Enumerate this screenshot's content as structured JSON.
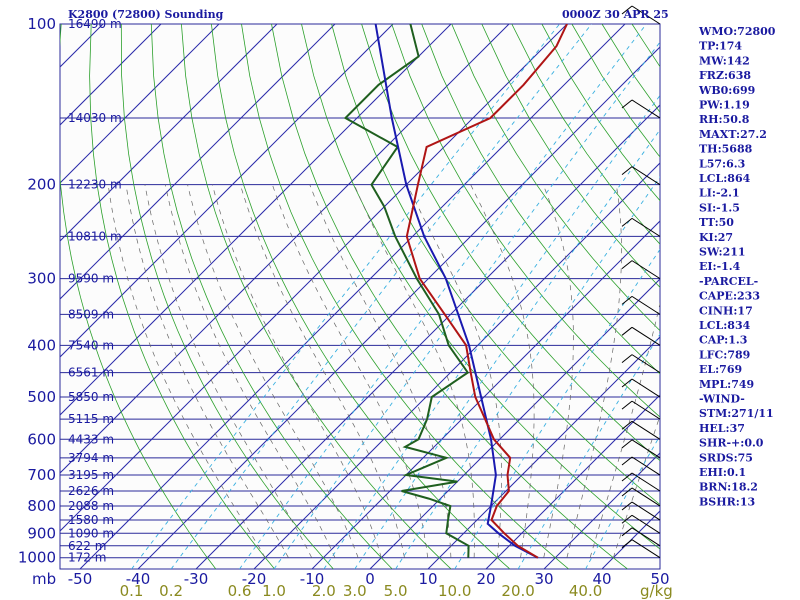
{
  "header": {
    "left": "K2800 (72800) Sounding",
    "right": "0000Z 30 APR 25"
  },
  "units": {
    "pressure": "mb",
    "mixing_ratio": "g/kg"
  },
  "chart_data": {
    "type": "skew-t",
    "pressure_levels": [
      100,
      200,
      300,
      400,
      500,
      600,
      700,
      800,
      900,
      1000
    ],
    "pressure_tick_labels": [
      "100",
      "200",
      "300",
      "400",
      "500",
      "600",
      "700",
      "800",
      "900",
      "1000"
    ],
    "height_labels": [
      {
        "p": 100,
        "label": "16490 m"
      },
      {
        "p": 150,
        "label": "14030 m"
      },
      {
        "p": 200,
        "label": "12230 m"
      },
      {
        "p": 250,
        "label": "10810 m"
      },
      {
        "p": 300,
        "label": "9590 m"
      },
      {
        "p": 350,
        "label": "8509 m"
      },
      {
        "p": 400,
        "label": "7540 m"
      },
      {
        "p": 450,
        "label": "6561 m"
      },
      {
        "p": 500,
        "label": "5850 m"
      },
      {
        "p": 550,
        "label": "5115 m"
      },
      {
        "p": 600,
        "label": "4433 m"
      },
      {
        "p": 650,
        "label": "3794 m"
      },
      {
        "p": 700,
        "label": "3195 m"
      },
      {
        "p": 750,
        "label": "2626 m"
      },
      {
        "p": 800,
        "label": "2088 m"
      },
      {
        "p": 850,
        "label": "1580 m"
      },
      {
        "p": 900,
        "label": "1090 m"
      },
      {
        "p": 950,
        "label": "622 m"
      },
      {
        "p": 1000,
        "label": "172 m"
      }
    ],
    "temperature_ticks": [
      -50,
      -40,
      -30,
      -20,
      -10,
      0,
      10,
      20,
      30,
      40,
      50
    ],
    "temperature_tick_labels": [
      "-50",
      "-40",
      "-30",
      "-20",
      "-10",
      "0",
      "10",
      "20",
      "30",
      "40",
      "50"
    ],
    "mixing_ratio_ticks": [
      0.1,
      0.2,
      0.6,
      1.0,
      2.0,
      3.0,
      5.0,
      10.0,
      20.0,
      40.0
    ],
    "mixing_ratio_tick_labels": [
      "0.1",
      "0.2",
      "0.6",
      "1.0",
      "2.0",
      "3.0",
      "5.0",
      "10.0",
      "20.0",
      "40.0"
    ],
    "temperature_profile": [
      {
        "p": 1000,
        "t": 27.0
      },
      {
        "p": 950,
        "t": 21.5
      },
      {
        "p": 900,
        "t": 17.0
      },
      {
        "p": 850,
        "t": 12.5
      },
      {
        "p": 800,
        "t": 11.0
      },
      {
        "p": 750,
        "t": 10.5
      },
      {
        "p": 700,
        "t": 7.5
      },
      {
        "p": 650,
        "t": 5.0
      },
      {
        "p": 600,
        "t": -1.0
      },
      {
        "p": 550,
        "t": -6.0
      },
      {
        "p": 500,
        "t": -11.5
      },
      {
        "p": 450,
        "t": -16.5
      },
      {
        "p": 400,
        "t": -22.0
      },
      {
        "p": 350,
        "t": -31.0
      },
      {
        "p": 300,
        "t": -41.5
      },
      {
        "p": 250,
        "t": -51.0
      },
      {
        "p": 200,
        "t": -58.0
      },
      {
        "p": 170,
        "t": -63.0
      },
      {
        "p": 150,
        "t": -57.0
      },
      {
        "p": 130,
        "t": -57.0
      },
      {
        "p": 110,
        "t": -58.0
      },
      {
        "p": 100,
        "t": -60.0
      }
    ],
    "dewpoint_profile": [
      {
        "p": 1000,
        "t": 15.0
      },
      {
        "p": 950,
        "t": 13.0
      },
      {
        "p": 900,
        "t": 7.0
      },
      {
        "p": 850,
        "t": 5.0
      },
      {
        "p": 800,
        "t": 3.0
      },
      {
        "p": 775,
        "t": -2.0
      },
      {
        "p": 750,
        "t": -8.0
      },
      {
        "p": 720,
        "t": 0.0
      },
      {
        "p": 700,
        "t": -10.0
      },
      {
        "p": 650,
        "t": -6.0
      },
      {
        "p": 620,
        "t": -15.0
      },
      {
        "p": 600,
        "t": -14.0
      },
      {
        "p": 550,
        "t": -16.0
      },
      {
        "p": 500,
        "t": -19.0
      },
      {
        "p": 450,
        "t": -17.0
      },
      {
        "p": 400,
        "t": -25.0
      },
      {
        "p": 350,
        "t": -32.0
      },
      {
        "p": 300,
        "t": -42.0
      },
      {
        "p": 250,
        "t": -53.0
      },
      {
        "p": 220,
        "t": -60.0
      },
      {
        "p": 200,
        "t": -66.0
      },
      {
        "p": 170,
        "t": -68.0
      },
      {
        "p": 150,
        "t": -82.0
      },
      {
        "p": 130,
        "t": -82.0
      },
      {
        "p": 115,
        "t": -80.0
      },
      {
        "p": 100,
        "t": -87.0
      }
    ],
    "parcel_profile": [
      {
        "p": 1000,
        "t": 27.0
      },
      {
        "p": 950,
        "t": 21.0
      },
      {
        "p": 900,
        "t": 16.0
      },
      {
        "p": 864,
        "t": 12.5
      },
      {
        "p": 800,
        "t": 10.0
      },
      {
        "p": 700,
        "t": 5.5
      },
      {
        "p": 600,
        "t": -1.5
      },
      {
        "p": 500,
        "t": -10.5
      },
      {
        "p": 400,
        "t": -21.5
      },
      {
        "p": 300,
        "t": -37.0
      },
      {
        "p": 250,
        "t": -48.0
      },
      {
        "p": 200,
        "t": -60.0
      },
      {
        "p": 150,
        "t": -74.0
      },
      {
        "p": 100,
        "t": -93.0
      }
    ],
    "colors": {
      "isobar": "#2a2a9a",
      "isotherm": "#2a2aaa",
      "dry_adiabat": "#2ca02c",
      "moist_adiabat": "#666666",
      "mixing_ratio": "#3ab0e0",
      "temperature": "#b01515",
      "dewpoint": "#1f5f1f",
      "parcel": "#1a1ab0",
      "wind": "#000000"
    }
  },
  "indices": [
    "WMO:72800",
    "TP:174",
    "MW:142",
    "FRZ:638",
    "WB0:699",
    "PW:1.19",
    "RH:50.8",
    "MAXT:27.2",
    "TH:5688",
    "L57:6.3",
    "LCL:864",
    "LI:-2.1",
    "SI:-1.5",
    "TT:50",
    "KI:27",
    "SW:211",
    "EI:-1.4",
    "-PARCEL-",
    "CAPE:233",
    "CINH:17",
    "LCL:834",
    "CAP:1.3",
    "LFC:789",
    "EL:769",
    "MPL:749",
    "-WIND-",
    "STM:271/11",
    "HEL:37",
    "SHR-+:0.0",
    "SRDS:75",
    "EHI:0.1",
    "BRN:18.2",
    "BSHR:13"
  ]
}
